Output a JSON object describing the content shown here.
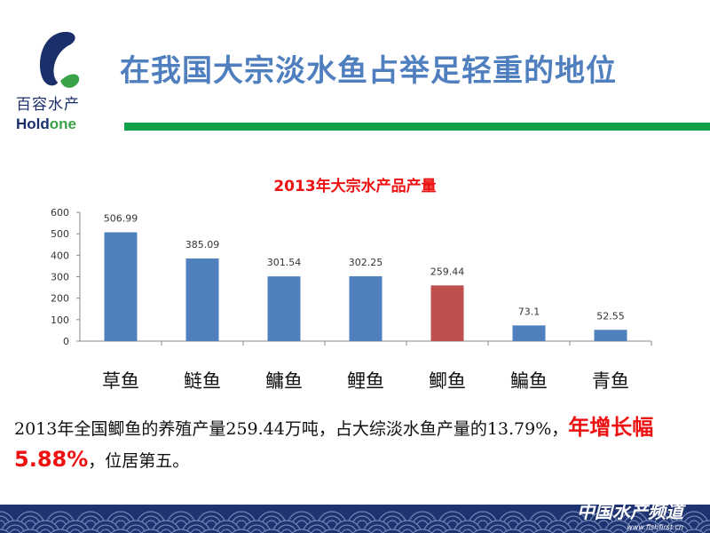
{
  "header": {
    "title": "在我国大宗淡水鱼占举足轻重的地位",
    "logo_cn": "百容水产",
    "logo_en_a": "Hold",
    "logo_en_b": "one"
  },
  "colors": {
    "bar": "#4F81BD",
    "highlight": "#C0504D",
    "title": "#4F7FBF",
    "accent_green": "#12A04A"
  },
  "chart_data": {
    "type": "bar",
    "title": "2013年大宗水产品产量",
    "categories": [
      "草鱼",
      "鲢鱼",
      "鳙鱼",
      "鲤鱼",
      "鲫鱼",
      "鳊鱼",
      "青鱼"
    ],
    "values": [
      506.99,
      385.09,
      301.54,
      302.25,
      259.44,
      73.1,
      52.55
    ],
    "data_labels": [
      "506.99",
      "385.09",
      "301.54",
      "302.25",
      "259.44",
      "73.1",
      "52.55"
    ],
    "highlight_index": 4,
    "ylim": [
      0,
      600
    ],
    "yticks": [
      0,
      100,
      200,
      300,
      400,
      500,
      600
    ],
    "grid": false
  },
  "description": {
    "text1": "2013年全国鲫鱼的养殖产量259.44万吨，占大综淡水鱼产量的13.79%，",
    "highlight": "年增长幅5.88%",
    "text2": "，位居第五。"
  },
  "watermark": {
    "cn": "中国水产频道",
    "url": "www.fishfirst.cn"
  }
}
